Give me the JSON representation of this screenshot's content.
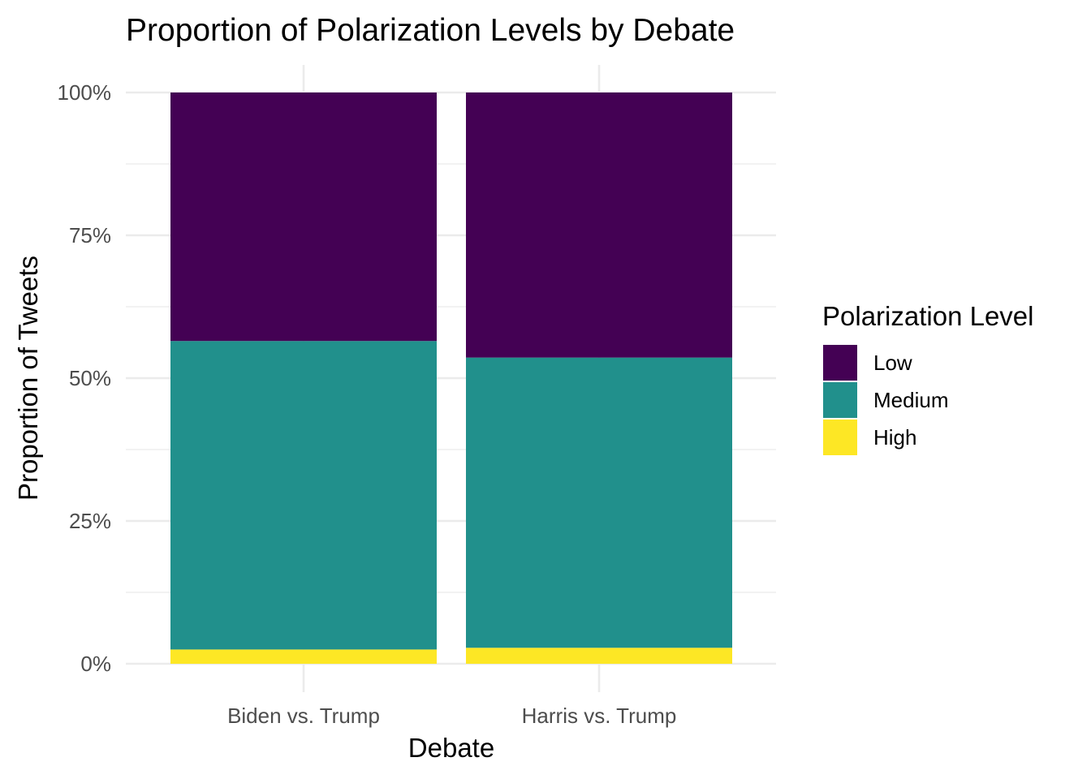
{
  "chart_data": {
    "type": "bar",
    "stacked": true,
    "title": "Proportion of Polarization Levels by Debate",
    "xlabel": "Debate",
    "ylabel": "Proportion of Tweets",
    "categories": [
      "Biden vs. Trump",
      "Harris vs. Trump"
    ],
    "series": [
      {
        "name": "High",
        "values": [
          0.025,
          0.028
        ],
        "color": "#fde725"
      },
      {
        "name": "Medium",
        "values": [
          0.54,
          0.508
        ],
        "color": "#21908c"
      },
      {
        "name": "Low",
        "values": [
          0.435,
          0.464
        ],
        "color": "#440154"
      }
    ],
    "ylim": [
      0,
      1
    ],
    "yticks": [
      0,
      0.25,
      0.5,
      0.75,
      1
    ],
    "ytick_labels": [
      "0%",
      "25%",
      "50%",
      "75%",
      "100%"
    ],
    "grid": true,
    "legend": {
      "title": "Polarization Level",
      "placement": "right",
      "entries": [
        {
          "label": "Low",
          "color": "#440154"
        },
        {
          "label": "Medium",
          "color": "#21908c"
        },
        {
          "label": "High",
          "color": "#fde725"
        }
      ]
    }
  }
}
